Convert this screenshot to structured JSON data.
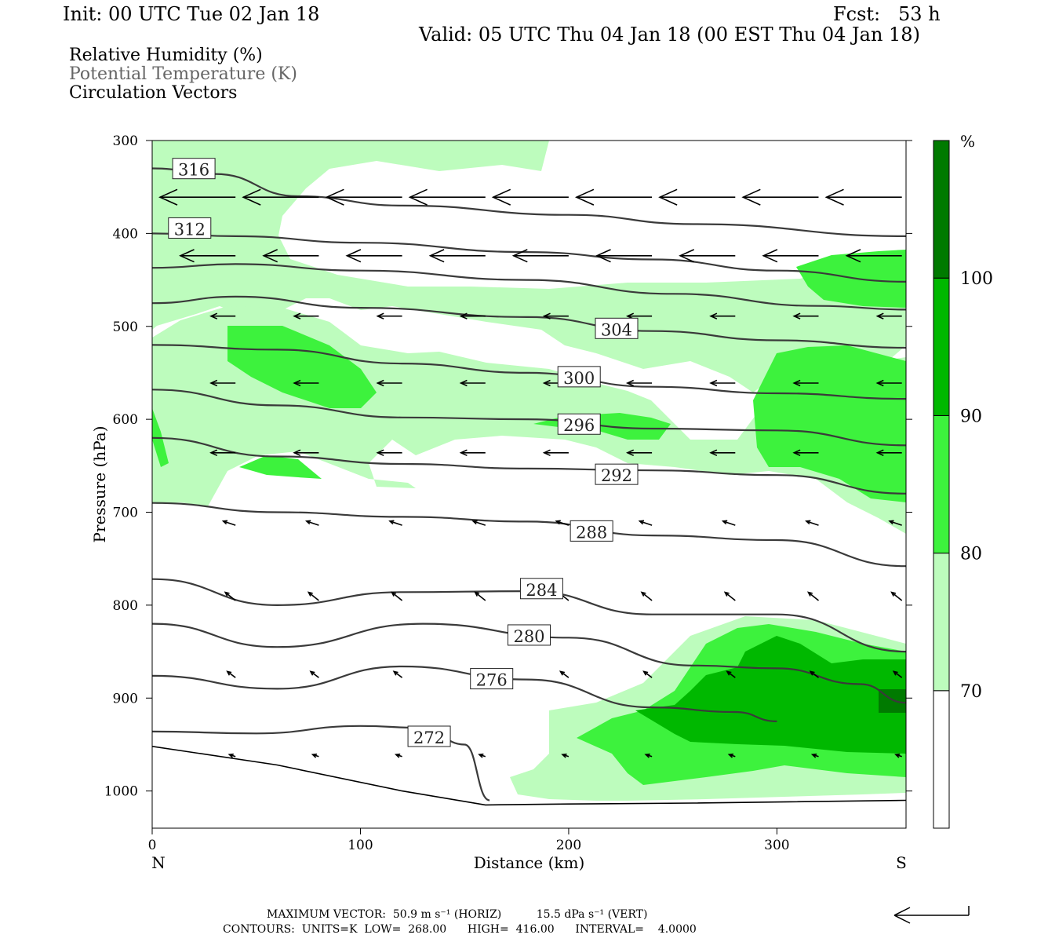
{
  "header": {
    "init": "Init: 00 UTC Tue 02 Jan 18",
    "fcst": "Fcst:   53 h",
    "valid": "Valid: 05 UTC Thu 04 Jan 18 (00 EST Thu 04 Jan 18)"
  },
  "legend": {
    "rh": "Relative Humidity (%)",
    "theta": "Potential Temperature (K)",
    "vectors": "Circulation Vectors"
  },
  "colors": {
    "rh70": "#bdfcbd",
    "rh80": "#3df23d",
    "rh90": "#00b800",
    "rh100": "#007a00",
    "contour": "#3a3a3a"
  },
  "chart_data": {
    "type": "cross-section",
    "xlabel": "Distance (km)",
    "ylabel": "Pressure (hPa)",
    "xlim": [
      0,
      362
    ],
    "ylim": [
      1040,
      300
    ],
    "x_ticks": [
      0,
      100,
      200,
      300
    ],
    "y_ticks": [
      300,
      400,
      500,
      600,
      700,
      800,
      900,
      1000
    ],
    "x_end_labels": {
      "left": "N",
      "right": "S"
    },
    "colorbar": {
      "unit": "%",
      "levels": [
        70,
        80,
        90,
        100
      ],
      "tick_labels": [
        "70",
        "80",
        "90",
        "100"
      ]
    },
    "theta_contours": [
      {
        "level": 272,
        "label": "272",
        "label_at": [
          133,
          942
        ],
        "points": [
          [
            0,
            936
          ],
          [
            50,
            938
          ],
          [
            100,
            930
          ],
          [
            130,
            932
          ],
          [
            150,
            950
          ],
          [
            162,
            1010
          ]
        ]
      },
      {
        "level": 276,
        "label": "276",
        "label_at": [
          163,
          880
        ],
        "points": [
          [
            0,
            876
          ],
          [
            60,
            890
          ],
          [
            120,
            866
          ],
          [
            180,
            880
          ],
          [
            240,
            910
          ],
          [
            280,
            915
          ],
          [
            300,
            925
          ]
        ]
      },
      {
        "level": 280,
        "label": "280",
        "label_at": [
          181,
          833
        ],
        "points": [
          [
            0,
            820
          ],
          [
            60,
            845
          ],
          [
            130,
            820
          ],
          [
            200,
            835
          ],
          [
            260,
            865
          ],
          [
            300,
            868
          ],
          [
            340,
            885
          ],
          [
            362,
            905
          ]
        ]
      },
      {
        "level": 284,
        "label": "284",
        "label_at": [
          187,
          783
        ],
        "points": [
          [
            0,
            772
          ],
          [
            60,
            800
          ],
          [
            120,
            786
          ],
          [
            180,
            785
          ],
          [
            240,
            810
          ],
          [
            300,
            810
          ],
          [
            362,
            850
          ]
        ]
      },
      {
        "level": 288,
        "label": "288",
        "label_at": [
          211,
          721
        ],
        "points": [
          [
            0,
            690
          ],
          [
            60,
            700
          ],
          [
            120,
            705
          ],
          [
            180,
            710
          ],
          [
            240,
            725
          ],
          [
            300,
            730
          ],
          [
            362,
            758
          ]
        ]
      },
      {
        "level": 292,
        "label": "292",
        "label_at": [
          223,
          660
        ],
        "points": [
          [
            0,
            620
          ],
          [
            60,
            640
          ],
          [
            120,
            648
          ],
          [
            180,
            653
          ],
          [
            240,
            655
          ],
          [
            300,
            660
          ],
          [
            362,
            680
          ]
        ]
      },
      {
        "level": 296,
        "label": "296",
        "label_at": [
          205,
          606
        ],
        "points": [
          [
            0,
            568
          ],
          [
            60,
            585
          ],
          [
            120,
            598
          ],
          [
            180,
            600
          ],
          [
            240,
            610
          ],
          [
            300,
            612
          ],
          [
            362,
            628
          ]
        ]
      },
      {
        "level": 300,
        "label": "300",
        "label_at": [
          205,
          555
        ],
        "points": [
          [
            0,
            520
          ],
          [
            60,
            525
          ],
          [
            120,
            540
          ],
          [
            180,
            550
          ],
          [
            240,
            565
          ],
          [
            300,
            572
          ],
          [
            362,
            578
          ]
        ]
      },
      {
        "level": 304,
        "label": "304",
        "label_at": [
          223,
          503
        ],
        "points": [
          [
            0,
            475
          ],
          [
            40,
            468
          ],
          [
            100,
            480
          ],
          [
            180,
            490
          ],
          [
            240,
            505
          ],
          [
            300,
            515
          ],
          [
            362,
            523
          ]
        ]
      },
      {
        "level": 308,
        "label": "",
        "label_at": null,
        "points": [
          [
            0,
            437
          ],
          [
            40,
            433
          ],
          [
            100,
            440
          ],
          [
            180,
            450
          ],
          [
            250,
            465
          ],
          [
            320,
            478
          ],
          [
            362,
            482
          ]
        ]
      },
      {
        "level": 312,
        "label": "312",
        "label_at": [
          18,
          395
        ],
        "points": [
          [
            0,
            400
          ],
          [
            40,
            403
          ],
          [
            100,
            410
          ],
          [
            180,
            420
          ],
          [
            240,
            428
          ],
          [
            300,
            440
          ],
          [
            362,
            452
          ]
        ]
      },
      {
        "level": 316,
        "label": "316",
        "label_at": [
          20,
          331
        ],
        "points": [
          [
            0,
            330
          ],
          [
            30,
            336
          ],
          [
            70,
            360
          ],
          [
            120,
            370
          ],
          [
            200,
            380
          ],
          [
            260,
            390
          ],
          [
            362,
            403
          ]
        ]
      }
    ],
    "vectors": [
      {
        "x": 360,
        "p": 361,
        "u": -37,
        "w": 0
      },
      {
        "x": 320,
        "p": 361,
        "u": -37,
        "w": 0
      },
      {
        "x": 280,
        "p": 361,
        "u": -37,
        "w": 0
      },
      {
        "x": 240,
        "p": 361,
        "u": -37,
        "w": 0
      },
      {
        "x": 200,
        "p": 361,
        "u": -37,
        "w": 0
      },
      {
        "x": 160,
        "p": 361,
        "u": -37,
        "w": 0
      },
      {
        "x": 120,
        "p": 361,
        "u": -37,
        "w": 0
      },
      {
        "x": 80,
        "p": 361,
        "u": -37,
        "w": 0
      },
      {
        "x": 40,
        "p": 361,
        "u": -37,
        "w": 0
      },
      {
        "x": 360,
        "p": 424,
        "u": -27,
        "w": 0
      },
      {
        "x": 320,
        "p": 424,
        "u": -27,
        "w": 0
      },
      {
        "x": 280,
        "p": 424,
        "u": -27,
        "w": 0
      },
      {
        "x": 240,
        "p": 424,
        "u": -27,
        "w": 0
      },
      {
        "x": 200,
        "p": 424,
        "u": -27,
        "w": 0
      },
      {
        "x": 160,
        "p": 424,
        "u": -27,
        "w": 0
      },
      {
        "x": 120,
        "p": 424,
        "u": -27,
        "w": 0
      },
      {
        "x": 80,
        "p": 424,
        "u": -27,
        "w": 0
      },
      {
        "x": 40,
        "p": 424,
        "u": -27,
        "w": 0
      },
      {
        "x": 360,
        "p": 489,
        "u": -12,
        "w": 0
      },
      {
        "x": 320,
        "p": 489,
        "u": -12,
        "w": 0
      },
      {
        "x": 280,
        "p": 489,
        "u": -12,
        "w": 0
      },
      {
        "x": 240,
        "p": 489,
        "u": -12,
        "w": 0
      },
      {
        "x": 200,
        "p": 489,
        "u": -12,
        "w": 0
      },
      {
        "x": 160,
        "p": 489,
        "u": -12,
        "w": 0
      },
      {
        "x": 120,
        "p": 489,
        "u": -12,
        "w": 0
      },
      {
        "x": 80,
        "p": 489,
        "u": -12,
        "w": 0
      },
      {
        "x": 40,
        "p": 489,
        "u": -12,
        "w": 0
      },
      {
        "x": 360,
        "p": 561,
        "u": -12,
        "w": 0
      },
      {
        "x": 320,
        "p": 561,
        "u": -12,
        "w": 0
      },
      {
        "x": 280,
        "p": 561,
        "u": -12,
        "w": 0
      },
      {
        "x": 240,
        "p": 561,
        "u": -12,
        "w": 0
      },
      {
        "x": 200,
        "p": 561,
        "u": -12,
        "w": 0
      },
      {
        "x": 160,
        "p": 561,
        "u": -12,
        "w": 0
      },
      {
        "x": 120,
        "p": 561,
        "u": -12,
        "w": 0
      },
      {
        "x": 80,
        "p": 561,
        "u": -12,
        "w": 0
      },
      {
        "x": 40,
        "p": 561,
        "u": -12,
        "w": 0
      },
      {
        "x": 360,
        "p": 636,
        "u": -12,
        "w": 0
      },
      {
        "x": 320,
        "p": 636,
        "u": -12,
        "w": 0
      },
      {
        "x": 280,
        "p": 636,
        "u": -12,
        "w": 0
      },
      {
        "x": 240,
        "p": 636,
        "u": -12,
        "w": 0
      },
      {
        "x": 200,
        "p": 636,
        "u": -12,
        "w": 0
      },
      {
        "x": 160,
        "p": 636,
        "u": -12,
        "w": 0
      },
      {
        "x": 120,
        "p": 636,
        "u": -12,
        "w": 0
      },
      {
        "x": 80,
        "p": 636,
        "u": -12,
        "w": 0
      },
      {
        "x": 40,
        "p": 636,
        "u": -12,
        "w": 0
      },
      {
        "x": 360,
        "p": 714,
        "u": -6,
        "w": 2
      },
      {
        "x": 320,
        "p": 714,
        "u": -6,
        "w": 2
      },
      {
        "x": 280,
        "p": 714,
        "u": -6,
        "w": 2
      },
      {
        "x": 240,
        "p": 714,
        "u": -6,
        "w": 2
      },
      {
        "x": 200,
        "p": 714,
        "u": -6,
        "w": 2
      },
      {
        "x": 160,
        "p": 714,
        "u": -6,
        "w": 2
      },
      {
        "x": 120,
        "p": 714,
        "u": -6,
        "w": 2
      },
      {
        "x": 80,
        "p": 714,
        "u": -6,
        "w": 2
      },
      {
        "x": 40,
        "p": 714,
        "u": -6,
        "w": 2
      },
      {
        "x": 360,
        "p": 795,
        "u": -5,
        "w": 4
      },
      {
        "x": 320,
        "p": 795,
        "u": -5,
        "w": 4
      },
      {
        "x": 280,
        "p": 795,
        "u": -5,
        "w": 4
      },
      {
        "x": 240,
        "p": 795,
        "u": -5,
        "w": 4
      },
      {
        "x": 200,
        "p": 795,
        "u": -5,
        "w": 4
      },
      {
        "x": 160,
        "p": 795,
        "u": -5,
        "w": 4
      },
      {
        "x": 120,
        "p": 795,
        "u": -5,
        "w": 4
      },
      {
        "x": 80,
        "p": 795,
        "u": -5,
        "w": 4
      },
      {
        "x": 40,
        "p": 795,
        "u": -5,
        "w": 4
      },
      {
        "x": 360,
        "p": 878,
        "u": -4,
        "w": 3
      },
      {
        "x": 320,
        "p": 878,
        "u": -4,
        "w": 3
      },
      {
        "x": 280,
        "p": 878,
        "u": -4,
        "w": 3
      },
      {
        "x": 240,
        "p": 878,
        "u": -4,
        "w": 3
      },
      {
        "x": 200,
        "p": 878,
        "u": -4,
        "w": 3
      },
      {
        "x": 160,
        "p": 878,
        "u": -4,
        "w": 3
      },
      {
        "x": 120,
        "p": 878,
        "u": -4,
        "w": 3
      },
      {
        "x": 80,
        "p": 878,
        "u": -4,
        "w": 3
      },
      {
        "x": 40,
        "p": 878,
        "u": -4,
        "w": 3
      },
      {
        "x": 360,
        "p": 963,
        "u": -3,
        "w": 1
      },
      {
        "x": 320,
        "p": 963,
        "u": -3,
        "w": 1
      },
      {
        "x": 280,
        "p": 963,
        "u": -3,
        "w": 1
      },
      {
        "x": 240,
        "p": 963,
        "u": -3,
        "w": 1
      },
      {
        "x": 200,
        "p": 963,
        "u": -3,
        "w": 1
      },
      {
        "x": 160,
        "p": 963,
        "u": -3,
        "w": 1
      },
      {
        "x": 120,
        "p": 963,
        "u": -3,
        "w": 1
      },
      {
        "x": 80,
        "p": 963,
        "u": -3,
        "w": 1
      },
      {
        "x": 40,
        "p": 963,
        "u": -3,
        "w": 1
      }
    ],
    "terrain_surface_hPa": [
      [
        0,
        952
      ],
      [
        60,
        972
      ],
      [
        120,
        1000
      ],
      [
        160,
        1015
      ],
      [
        200,
        1014
      ],
      [
        260,
        1013
      ],
      [
        362,
        1010
      ]
    ]
  },
  "footer": {
    "max_vector": "MAXIMUM VECTOR:  50.9 m s⁻¹ (HORIZ)          15.5 dPa s⁻¹ (VERT)",
    "contours": "CONTOURS:  UNITS=K  LOW=  268.00      HIGH=  416.00      INTERVAL=    4.0000"
  }
}
